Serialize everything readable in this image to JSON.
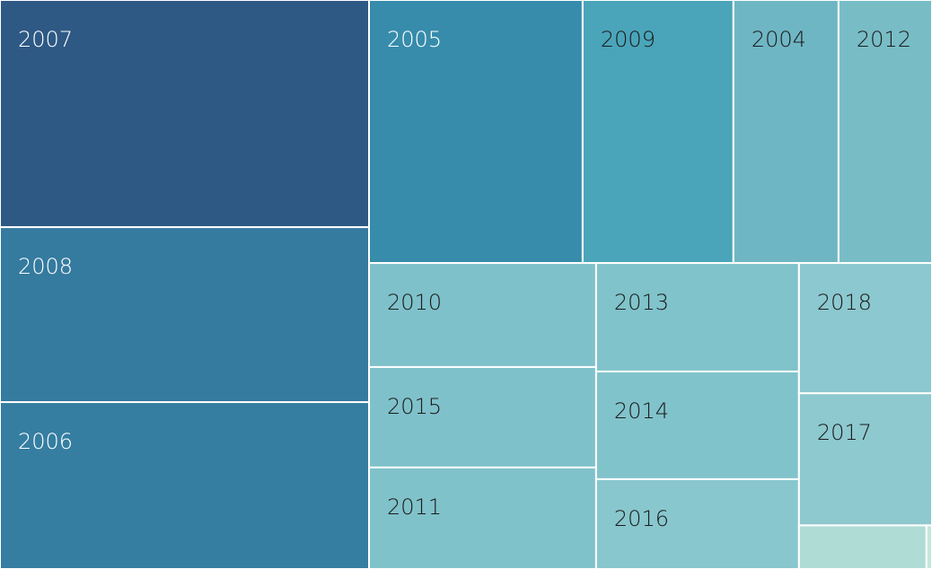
{
  "chart_data": {
    "type": "treemap",
    "categories": [
      "2007",
      "2008",
      "2006",
      "2005",
      "2009",
      "2004",
      "2012",
      "2010",
      "2015",
      "2011",
      "2013",
      "2014",
      "2016",
      "2018",
      "2017",
      null,
      null
    ],
    "values": [
      1040,
      801,
      764,
      697,
      492,
      343,
      305,
      293,
      283,
      286,
      273,
      271,
      226,
      215,
      218,
      69,
      3
    ],
    "colors": [
      "#2e5984",
      "#357a9f",
      "#357ea1",
      "#378cab",
      "#4aa5ba",
      "#6fb6c4",
      "#78bdc6",
      "#7fc1ca",
      "#7fc1ca",
      "#80c2ca",
      "#80c3cb",
      "#81c3cb",
      "#88c7ce",
      "#8cc8cf",
      "#8dc9cf",
      "#b0dcd6",
      "#c4e6dc"
    ]
  }
}
